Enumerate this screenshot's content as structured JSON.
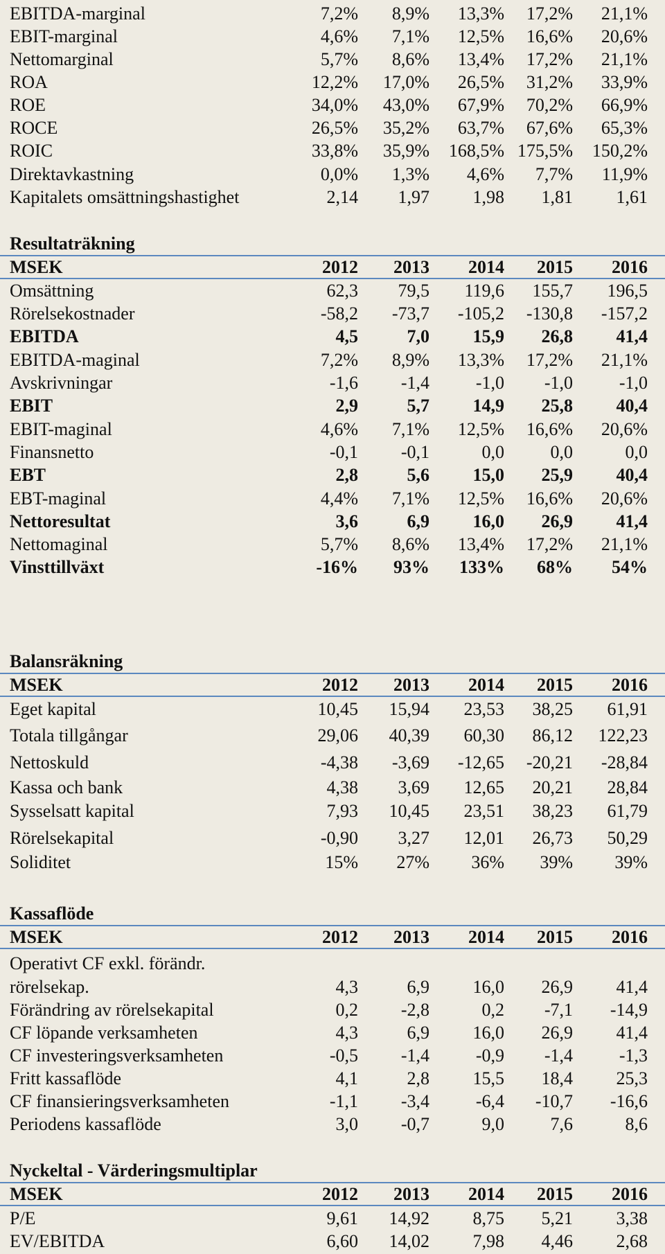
{
  "years": [
    "2012",
    "2013",
    "2014",
    "2015",
    "2016"
  ],
  "top": [
    {
      "label": "EBITDA-marginal",
      "values": [
        "7,2%",
        "8,9%",
        "13,3%",
        "17,2%",
        "21,1%"
      ]
    },
    {
      "label": "EBIT-marginal",
      "values": [
        "4,6%",
        "7,1%",
        "12,5%",
        "16,6%",
        "20,6%"
      ]
    },
    {
      "label": "Nettomarginal",
      "values": [
        "5,7%",
        "8,6%",
        "13,4%",
        "17,2%",
        "21,1%"
      ]
    },
    {
      "label": "ROA",
      "values": [
        "12,2%",
        "17,0%",
        "26,5%",
        "31,2%",
        "33,9%"
      ]
    },
    {
      "label": "ROE",
      "values": [
        "34,0%",
        "43,0%",
        "67,9%",
        "70,2%",
        "66,9%"
      ]
    },
    {
      "label": "ROCE",
      "values": [
        "26,5%",
        "35,2%",
        "63,7%",
        "67,6%",
        "65,3%"
      ]
    },
    {
      "label": "ROIC",
      "values": [
        "33,8%",
        "35,9%",
        "168,5%",
        "175,5%",
        "150,2%"
      ]
    },
    {
      "label": "Direktavkastning",
      "values": [
        "0,0%",
        "1,3%",
        "4,6%",
        "7,7%",
        "11,9%"
      ]
    },
    {
      "label": "Kapitalets omsättningshastighet",
      "values": [
        "2,14",
        "1,97",
        "1,98",
        "1,81",
        "1,61"
      ]
    }
  ],
  "sections": {
    "resultat": {
      "title": "Resultaträkning",
      "unit": "MSEK",
      "rows": [
        {
          "label": "Omsättning",
          "values": [
            "62,3",
            "79,5",
            "119,6",
            "155,7",
            "196,5"
          ]
        },
        {
          "label": "Rörelsekostnader",
          "values": [
            "-58,2",
            "-73,7",
            "-105,2",
            "-130,8",
            "-157,2"
          ]
        },
        {
          "label": "EBITDA",
          "values": [
            "4,5",
            "7,0",
            "15,9",
            "26,8",
            "41,4"
          ]
        },
        {
          "label": "EBITDA-maginal",
          "values": [
            "7,2%",
            "8,9%",
            "13,3%",
            "17,2%",
            "21,1%"
          ]
        },
        {
          "label": "Avskrivningar",
          "values": [
            "-1,6",
            "-1,4",
            "-1,0",
            "-1,0",
            "-1,0"
          ]
        },
        {
          "label": "EBIT",
          "values": [
            "2,9",
            "5,7",
            "14,9",
            "25,8",
            "40,4"
          ]
        },
        {
          "label": "EBIT-maginal",
          "values": [
            "4,6%",
            "7,1%",
            "12,5%",
            "16,6%",
            "20,6%"
          ]
        },
        {
          "label": "Finansnetto",
          "values": [
            "-0,1",
            "-0,1",
            "0,0",
            "0,0",
            "0,0"
          ]
        },
        {
          "label": "EBT",
          "values": [
            "2,8",
            "5,6",
            "15,0",
            "25,9",
            "40,4"
          ]
        },
        {
          "label": "EBT-maginal",
          "values": [
            "4,4%",
            "7,1%",
            "12,5%",
            "16,6%",
            "20,6%"
          ]
        },
        {
          "label": "Nettoresultat",
          "values": [
            "3,6",
            "6,9",
            "16,0",
            "26,9",
            "41,4"
          ]
        },
        {
          "label": "Nettomaginal",
          "values": [
            "5,7%",
            "8,6%",
            "13,4%",
            "17,2%",
            "21,1%"
          ]
        },
        {
          "label": "Vinsttillväxt",
          "values": [
            "-16%",
            "93%",
            "133%",
            "68%",
            "54%"
          ]
        }
      ]
    },
    "balans": {
      "title": "Balansräkning",
      "unit": "MSEK",
      "rows": [
        {
          "label": "Eget kapital",
          "values": [
            "10,45",
            "15,94",
            "23,53",
            "38,25",
            "61,91"
          ]
        },
        {
          "label": "Totala tillgångar",
          "values": [
            "29,06",
            "40,39",
            "60,30",
            "86,12",
            "122,23"
          ]
        },
        {
          "label": "Nettoskuld",
          "values": [
            "-4,38",
            "-3,69",
            "-12,65",
            "-20,21",
            "-28,84"
          ]
        },
        {
          "label": "Kassa och bank",
          "values": [
            "4,38",
            "3,69",
            "12,65",
            "20,21",
            "28,84"
          ]
        },
        {
          "label": "Sysselsatt kapital",
          "values": [
            "7,93",
            "10,45",
            "23,51",
            "38,23",
            "61,79"
          ]
        },
        {
          "label": "Rörelsekapital",
          "values": [
            "-0,90",
            "3,27",
            "12,01",
            "26,73",
            "50,29"
          ]
        },
        {
          "label": "Soliditet",
          "values": [
            "15%",
            "27%",
            "36%",
            "39%",
            "39%"
          ]
        }
      ]
    },
    "kassaflode": {
      "title": "Kassaflöde",
      "unit": "MSEK",
      "first_label_line1": "Operativt CF exkl. förändr.",
      "rows": [
        {
          "label": "rörelsekap.",
          "values": [
            "4,3",
            "6,9",
            "16,0",
            "26,9",
            "41,4"
          ]
        },
        {
          "label": "Förändring av rörelsekapital",
          "values": [
            "0,2",
            "-2,8",
            "0,2",
            "-7,1",
            "-14,9"
          ]
        },
        {
          "label": "CF löpande verksamheten",
          "values": [
            "4,3",
            "6,9",
            "16,0",
            "26,9",
            "41,4"
          ]
        },
        {
          "label": "CF investeringsverksamheten",
          "values": [
            "-0,5",
            "-1,4",
            "-0,9",
            "-1,4",
            "-1,3"
          ]
        },
        {
          "label": "Fritt kassaflöde",
          "values": [
            "4,1",
            "2,8",
            "15,5",
            "18,4",
            "25,3"
          ]
        },
        {
          "label": "CF finansieringsverksamheten",
          "values": [
            "-1,1",
            "-3,4",
            "-6,4",
            "-10,7",
            "-16,6"
          ]
        },
        {
          "label": "Periodens kassaflöde",
          "values": [
            "3,0",
            "-0,7",
            "9,0",
            "7,6",
            "8,6"
          ]
        }
      ]
    },
    "nyckeltal": {
      "title": "Nyckeltal - Värderingsmultiplar",
      "unit": "MSEK",
      "rows": [
        {
          "label": "P/E",
          "values": [
            "9,61",
            "14,92",
            "8,75",
            "5,21",
            "3,38"
          ]
        },
        {
          "label": "EV/EBITDA",
          "values": [
            "6,60",
            "14,02",
            "7,98",
            "4,46",
            "2,68"
          ]
        }
      ]
    }
  }
}
